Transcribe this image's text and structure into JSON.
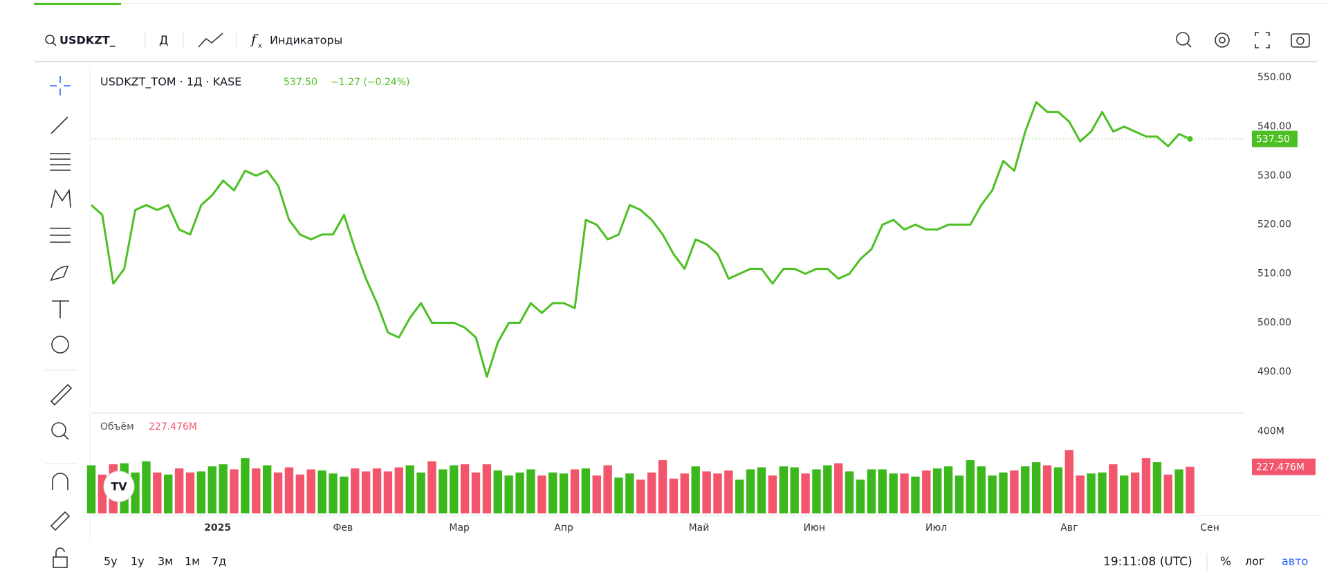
{
  "toolbar": {
    "symbol": "USDKZT_",
    "interval": "Д",
    "indicators": "Индикаторы"
  },
  "chart_data": [
    {
      "type": "line",
      "series": [
        {
          "name": "USDKZT_TOM · 1Д · KASE",
          "color": "#4cbf22",
          "values": [
            524,
            522,
            508,
            511,
            523,
            524,
            523,
            524,
            519,
            518,
            524,
            526,
            529,
            527,
            531,
            530,
            531,
            528,
            521,
            518,
            517,
            518,
            518,
            522,
            515,
            509,
            504,
            498,
            497,
            501,
            504,
            500,
            500,
            500,
            499,
            497,
            489,
            496,
            500,
            500,
            504,
            502,
            504,
            504,
            503,
            521,
            520,
            517,
            518,
            524,
            523,
            521,
            518,
            514,
            511,
            517,
            516,
            514,
            509,
            510,
            511,
            511,
            508,
            511,
            511,
            510,
            511,
            511,
            509,
            510,
            513,
            515,
            520,
            521,
            519,
            520,
            519,
            519,
            520,
            520,
            520,
            524,
            527,
            533,
            531,
            539,
            545,
            543,
            543,
            541,
            537,
            539,
            543,
            539,
            540,
            539,
            538,
            538,
            536,
            538.5,
            537.5
          ]
        }
      ],
      "last_value_label": "537.50",
      "change": "−1.27 (−0.24%)",
      "xlim": [
        0,
        105
      ],
      "xticks": [
        {
          "value": 11.5,
          "label": "2025"
        },
        {
          "value": 22.9,
          "label": "Фев"
        },
        {
          "value": 33.5,
          "label": "Мар"
        },
        {
          "value": 43,
          "label": "Апр"
        },
        {
          "value": 55.3,
          "label": "Май"
        },
        {
          "value": 65.8,
          "label": "Июн"
        },
        {
          "value": 76.9,
          "label": "Июл"
        },
        {
          "value": 89,
          "label": "Авг"
        },
        {
          "value": 101.8,
          "label": "Сен"
        }
      ],
      "ylim": [
        482,
        552
      ],
      "yticks": [
        {
          "value": 490,
          "label": "490.00"
        },
        {
          "value": 500,
          "label": "500.00"
        },
        {
          "value": 510,
          "label": "510.00"
        },
        {
          "value": 520,
          "label": "520.00"
        },
        {
          "value": 530,
          "label": "530.00"
        },
        {
          "value": 540,
          "label": "540.00"
        },
        {
          "value": 550,
          "label": "550.00"
        }
      ]
    },
    {
      "type": "bar",
      "series": [
        {
          "name": "Объём",
          "values": [
            235,
            190,
            240,
            245,
            200,
            255,
            200,
            190,
            220,
            200,
            205,
            230,
            240,
            215,
            270,
            220,
            235,
            200,
            225,
            190,
            215,
            210,
            195,
            180,
            220,
            205,
            220,
            205,
            225,
            235,
            200,
            255,
            215,
            235,
            240,
            200,
            240,
            210,
            185,
            200,
            215,
            185,
            200,
            195,
            215,
            220,
            185,
            235,
            175,
            195,
            165,
            200,
            260,
            170,
            195,
            230,
            205,
            195,
            210,
            165,
            215,
            225,
            185,
            230,
            225,
            195,
            215,
            235,
            245,
            205,
            165,
            215,
            215,
            195,
            195,
            180,
            210,
            220,
            230,
            185,
            260,
            230,
            185,
            200,
            210,
            230,
            250,
            235,
            225,
            310,
            185,
            195,
            200,
            240,
            185,
            200,
            270,
            250,
            190,
            215,
            227.476
          ]
        }
      ],
      "last_value_label": "227.476M",
      "up_color": "#3cb81c",
      "down_color": "#f2566c",
      "ylim": [
        0,
        480
      ],
      "yticks": [
        {
          "value": 400,
          "label": "400M"
        }
      ]
    }
  ],
  "footer": {
    "ranges": [
      "5у",
      "1у",
      "3м",
      "1м",
      "7д"
    ],
    "time": "19:11:08 (UTC)",
    "percent": "%",
    "log": "лог",
    "auto": "авто"
  }
}
